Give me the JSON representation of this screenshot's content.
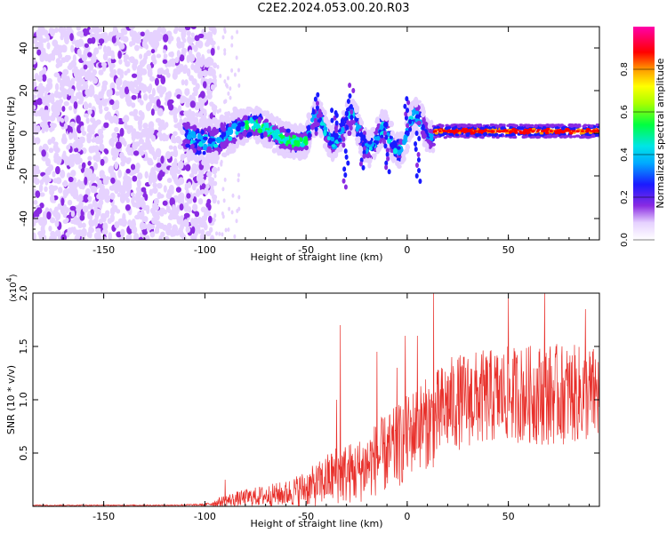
{
  "title": "C2E2.2024.053.00.20.R03",
  "chart_data": [
    {
      "type": "heatmap",
      "xlabel": "Height of straight line (km)",
      "ylabel": "Frequency (Hz)",
      "xlim": [
        -185,
        95
      ],
      "ylim": [
        -50,
        50
      ],
      "xticks": [
        -150,
        -100,
        -50,
        0,
        50
      ],
      "yticks": [
        -40,
        -20,
        0,
        20,
        40
      ],
      "colorbar": {
        "label": "Normalized spectral amplitude",
        "range": [
          0.0,
          1.0
        ],
        "ticks": [
          "0.0",
          "0.2",
          "0.4",
          "0.6",
          "0.8"
        ],
        "colormap": "rainbow (white-violet-blue-cyan-green-yellow-red-magenta)"
      },
      "description_regions": [
        {
          "x_range": [
            -185,
            -95
          ],
          "pattern": "broadband low-amplitude noise across all frequencies"
        },
        {
          "x_range": [
            -95,
            -85
          ],
          "pattern": "sparse weak noise"
        },
        {
          "x_range": [
            -110,
            13
          ],
          "pattern": "signal band near 0 Hz with wobble up to about +/-20 Hz"
        },
        {
          "x_range": [
            13,
            95
          ],
          "pattern": "narrow high-amplitude line at about 0-1 Hz"
        }
      ]
    },
    {
      "type": "line",
      "xlabel": "Height of straight line (km)",
      "ylabel": "SNR (10 * v/v)",
      "multiplier": "(x10",
      "multiplier_exp": "4",
      "multiplier_close": ")",
      "xlim": [
        -185,
        95
      ],
      "ylim": [
        0,
        2.0
      ],
      "xticks": [
        -150,
        -100,
        -50,
        0,
        50
      ],
      "yticks": [
        "0.5",
        "1.0",
        "1.5",
        "2.0"
      ],
      "ytick_values": [
        0.5,
        1.0,
        1.5,
        2.0
      ],
      "color": "#e8302b",
      "envelope": {
        "x": [
          -185,
          -120,
          -100,
          -90,
          -80,
          -60,
          -45,
          -35,
          -25,
          -15,
          -5,
          0,
          5,
          13,
          20,
          30,
          50,
          70,
          95
        ],
        "mean": [
          0.01,
          0.01,
          0.015,
          0.05,
          0.08,
          0.12,
          0.2,
          0.3,
          0.32,
          0.45,
          0.55,
          0.65,
          0.75,
          0.8,
          0.95,
          1.0,
          1.05,
          1.05,
          1.05
        ],
        "spread": [
          0.005,
          0.005,
          0.01,
          0.06,
          0.08,
          0.12,
          0.2,
          0.28,
          0.3,
          0.35,
          0.4,
          0.4,
          0.4,
          0.45,
          0.45,
          0.45,
          0.45,
          0.48,
          0.45
        ]
      },
      "peaks": [
        {
          "x": -90,
          "y": 0.25
        },
        {
          "x": -35,
          "y": 1.0
        },
        {
          "x": -33,
          "y": 1.7
        },
        {
          "x": -15,
          "y": 1.45
        },
        {
          "x": -5,
          "y": 1.3
        },
        {
          "x": -1,
          "y": 1.6
        },
        {
          "x": 5,
          "y": 1.6
        },
        {
          "x": 13,
          "y": 2.0
        },
        {
          "x": 50,
          "y": 1.95
        },
        {
          "x": 68,
          "y": 2.0
        },
        {
          "x": 88,
          "y": 1.85
        }
      ]
    }
  ]
}
